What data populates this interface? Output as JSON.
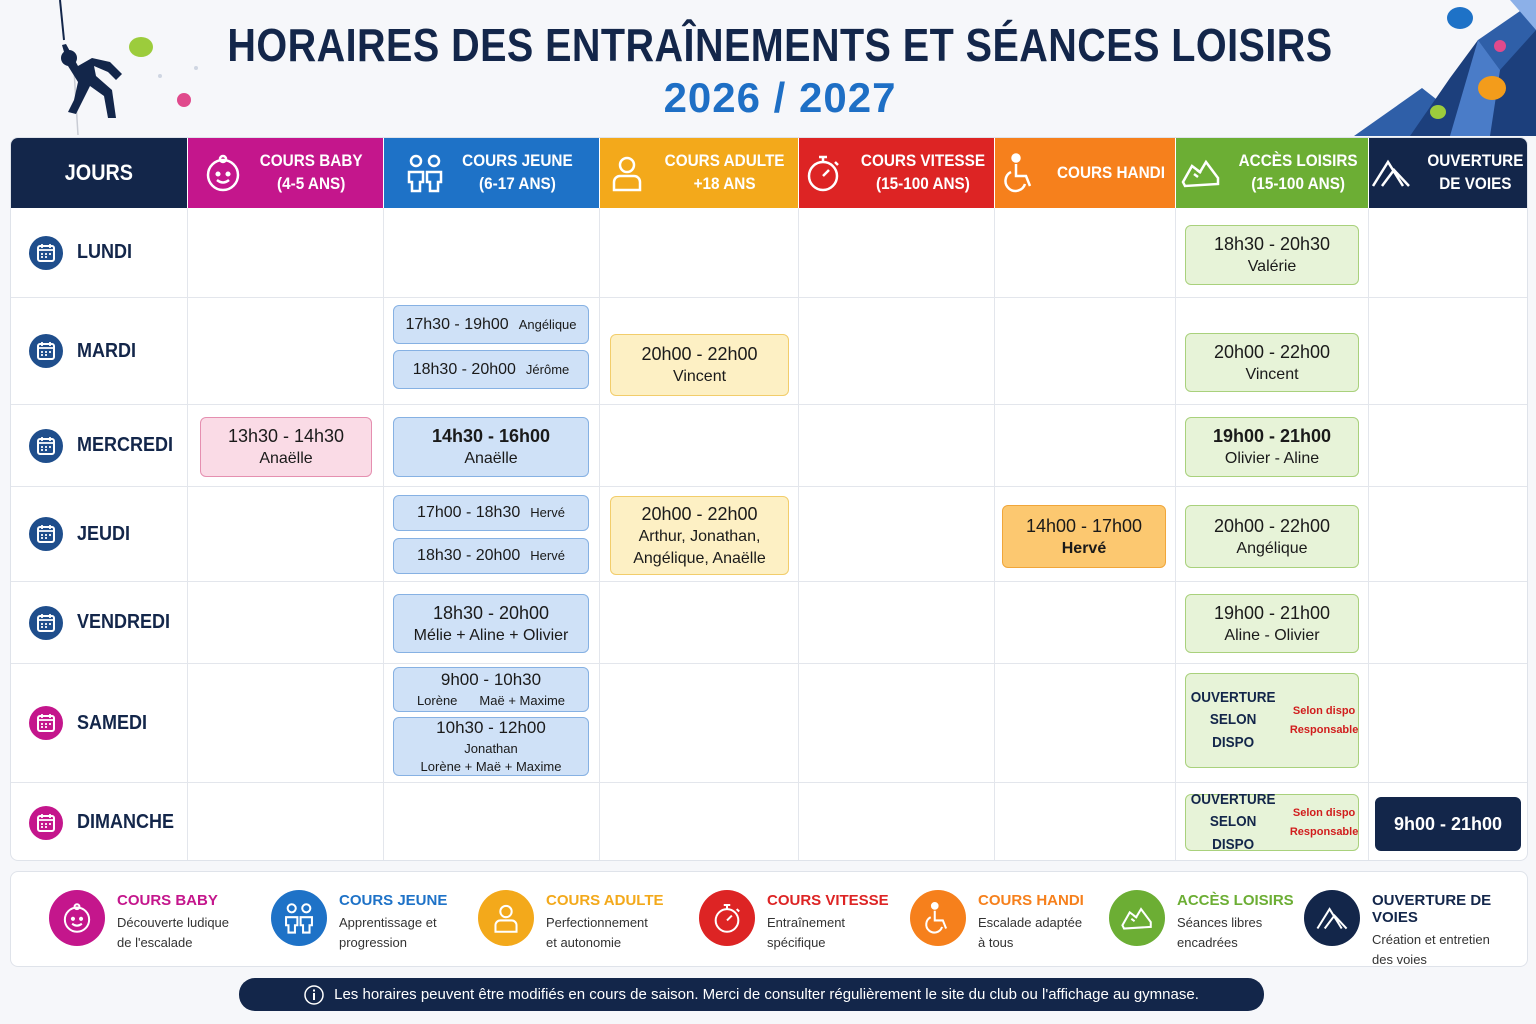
{
  "header": {
    "title": "HORAIRES DES ENTRAÎNEMENTS ET SÉANCES LOISIRS",
    "subtitle": "2026 / 2027"
  },
  "columns": [
    {
      "id": "jours",
      "line1": "JOURS",
      "line2": "",
      "color": "#13264a",
      "icon": "none"
    },
    {
      "id": "baby",
      "line1": "COURS BABY",
      "line2": "(4-5 ANS)",
      "color": "#c4168c",
      "icon": "baby-face-icon"
    },
    {
      "id": "jeune",
      "line1": "COURS JEUNE",
      "line2": "(6-17 ANS)",
      "color": "#1e72c7",
      "icon": "kids-icon"
    },
    {
      "id": "adulte",
      "line1": "COURS ADULTE",
      "line2": "+18 ANS",
      "color": "#f3a91b",
      "icon": "adult-icon"
    },
    {
      "id": "vitesse",
      "line1": "COURS VITESSE",
      "line2": "(15-100 ANS)",
      "color": "#dd2424",
      "icon": "stopwatch-icon"
    },
    {
      "id": "handi",
      "line1": "COURS HANDI",
      "line2": "",
      "color": "#f6801c",
      "icon": "wheelchair-icon"
    },
    {
      "id": "loisirs",
      "line1": "ACCÈS LOISIRS",
      "line2": "(15-100 ANS)",
      "color": "#6cae34",
      "icon": "shoe-icon"
    },
    {
      "id": "voies",
      "line1": "OUVERTURE",
      "line2": "DE VOIES",
      "color": "#13264a",
      "icon": "mountain-icon"
    }
  ],
  "days": [
    {
      "label": "LUNDI",
      "color": "#1f4e8c"
    },
    {
      "label": "MARDI",
      "color": "#1f4e8c"
    },
    {
      "label": "MERCREDI",
      "color": "#1f4e8c"
    },
    {
      "label": "JEUDI",
      "color": "#1f4e8c"
    },
    {
      "label": "VENDREDI",
      "color": "#1f4e8c"
    },
    {
      "label": "SAMEDI",
      "color": "#c4168c"
    },
    {
      "label": "DIMANCHE",
      "color": "#c4168c"
    }
  ],
  "slots": {
    "lundi_loisirs": {
      "time": "18h30 - 20h30",
      "names": "Valérie"
    },
    "mardi_jeune_1": {
      "time": "17h30 - 19h00",
      "names": "Angélique"
    },
    "mardi_jeune_2": {
      "time": "18h30 - 20h00",
      "names": "Jérôme"
    },
    "mardi_adulte": {
      "time": "20h00 - 22h00",
      "names": "Vincent"
    },
    "mardi_loisirs": {
      "time": "20h00 - 22h00",
      "names": "Vincent"
    },
    "mercredi_baby": {
      "time": "13h30 - 14h30",
      "names": "Anaëlle"
    },
    "mercredi_jeune": {
      "time": "14h30 - 16h00",
      "names": "Anaëlle"
    },
    "mercredi_loisirs": {
      "time": "19h00 - 21h00",
      "names": "Olivier - Aline"
    },
    "jeudi_jeune_1": {
      "time": "17h00 - 18h30",
      "names": "Hervé"
    },
    "jeudi_jeune_2": {
      "time": "18h30 - 20h00",
      "names": "Hervé"
    },
    "jeudi_adulte": {
      "time": "20h00 - 22h00",
      "names1": "Arthur, Jonathan,",
      "names2": "Angélique, Anaëlle"
    },
    "jeudi_handi": {
      "time": "14h00 - 17h00",
      "names": "Hervé"
    },
    "jeudi_loisirs": {
      "time": "20h00 - 22h00",
      "names": "Angélique"
    },
    "vendredi_jeune": {
      "time": "18h30 - 20h00",
      "names": "Mélie + Aline + Olivier"
    },
    "vendredi_loisirs": {
      "time": "19h00 - 21h00",
      "names": "Aline - Olivier"
    },
    "samedi_jeune_1": {
      "time": "9h00 - 10h30",
      "names_a": "Lorène",
      "names_b": "Maë + Maxime"
    },
    "samedi_jeune_2": {
      "time": "10h30 - 12h00",
      "names1": "Jonathan",
      "names2": "Lorène + Maë + Maxime"
    },
    "samedi_loisirs": {
      "line1": "OUVERTURE",
      "line2": "SELON DISPO",
      "note1": "Selon dispo",
      "note2": "Responsable"
    },
    "dimanche_loisirs": {
      "line1": "OUVERTURE",
      "line2": "SELON DISPO",
      "note1": "Selon dispo",
      "note2": "Responsable"
    },
    "dimanche_voies": {
      "time": "9h00 - 21h00"
    }
  },
  "legend": [
    {
      "title": "COURS BABY",
      "desc1": "Découverte ludique",
      "desc2": "de l'escalade",
      "color": "#c4168c",
      "icon": "baby-face-icon"
    },
    {
      "title": "COURS JEUNE",
      "desc1": "Apprentissage et",
      "desc2": "progression",
      "color": "#1e72c7",
      "icon": "kids-icon"
    },
    {
      "title": "COURS ADULTE",
      "desc1": "Perfectionnement",
      "desc2": "et autonomie",
      "color": "#f3a91b",
      "icon": "adult-icon"
    },
    {
      "title": "COURS VITESSE",
      "desc1": "Entraînement",
      "desc2": "spécifique",
      "color": "#dd2424",
      "icon": "stopwatch-icon"
    },
    {
      "title": "COURS HANDI",
      "desc1": "Escalade adaptée",
      "desc2": "à tous",
      "color": "#f6801c",
      "icon": "wheelchair-icon"
    },
    {
      "title": "ACCÈS LOISIRS",
      "desc1": "Séances libres",
      "desc2": "encadrées",
      "color": "#6cae34",
      "icon": "shoe-icon"
    },
    {
      "title": "OUVERTURE DE VOIES",
      "desc1": "Création et entretien",
      "desc2": "des voies",
      "color": "#13264a",
      "icon": "mountain-icon"
    }
  ],
  "footer": {
    "notice": "Les horaires peuvent être modifiés en cours de saison. Merci de consulter régulièrement le site du club ou l'affichage au gymnase."
  }
}
